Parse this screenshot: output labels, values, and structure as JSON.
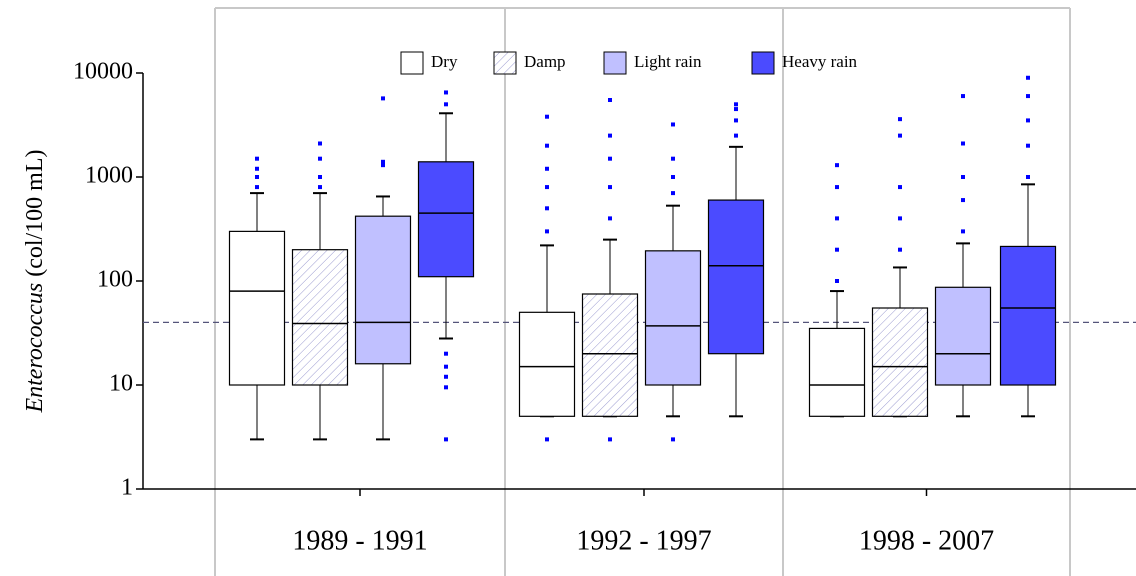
{
  "chart_data": {
    "type": "box",
    "y_label": [
      "Enterococcus",
      " (col/100 mL)"
    ],
    "categories": [
      "1989 - 1991",
      "1992 - 1997",
      "1998 - 2007"
    ],
    "log_scale": true,
    "ylim": [
      1,
      10000
    ],
    "yticks": [
      1,
      10,
      100,
      1000,
      10000
    ],
    "reference_line": 40,
    "outlier_color": "#0000ff",
    "legend": "top",
    "series": [
      {
        "name": "Dry",
        "color": "#ffffff",
        "pattern": "none",
        "boxes": [
          {
            "whisker_low": 3,
            "q1": 10,
            "median": 80,
            "q3": 300,
            "whisker_high": 700,
            "outliers": [
              800,
              1000,
              1200,
              1500
            ]
          },
          {
            "whisker_low": 5,
            "q1": 5,
            "median": 15,
            "q3": 50,
            "whisker_high": 220,
            "outliers": [
              3,
              300,
              500,
              800,
              1200,
              2000,
              3800
            ]
          },
          {
            "whisker_low": 5,
            "q1": 5,
            "median": 10,
            "q3": 35,
            "whisker_high": 80,
            "outliers": [
              100,
              200,
              400,
              800,
              1300
            ]
          }
        ]
      },
      {
        "name": "Damp",
        "color": "#ffffff",
        "pattern": "hatch",
        "boxes": [
          {
            "whisker_low": 3,
            "q1": 10,
            "median": 39,
            "q3": 200,
            "whisker_high": 700,
            "outliers": [
              800,
              1000,
              1500,
              2100
            ]
          },
          {
            "whisker_low": 5,
            "q1": 5,
            "median": 20,
            "q3": 75,
            "whisker_high": 250,
            "outliers": [
              3,
              400,
              800,
              1500,
              2500,
              5500
            ]
          },
          {
            "whisker_low": 5,
            "q1": 5,
            "median": 15,
            "q3": 55,
            "whisker_high": 135,
            "outliers": [
              200,
              400,
              800,
              2500,
              3600
            ]
          }
        ]
      },
      {
        "name": "Light rain",
        "color": "#c0c0ff",
        "pattern": "none",
        "boxes": [
          {
            "whisker_low": 3,
            "q1": 16,
            "median": 40,
            "q3": 420,
            "whisker_high": 650,
            "outliers": [
              1300,
              1400,
              5700
            ]
          },
          {
            "whisker_low": 5,
            "q1": 10,
            "median": 37,
            "q3": 195,
            "whisker_high": 530,
            "outliers": [
              3,
              700,
              1000,
              1500,
              3200
            ]
          },
          {
            "whisker_low": 5,
            "q1": 10,
            "median": 20,
            "q3": 87,
            "whisker_high": 230,
            "outliers": [
              300,
              600,
              1000,
              2100,
              6000
            ]
          }
        ]
      },
      {
        "name": "Heavy rain",
        "color": "#4b4bff",
        "pattern": "none",
        "boxes": [
          {
            "whisker_low": 28,
            "q1": 110,
            "median": 450,
            "q3": 1400,
            "whisker_high": 4100,
            "outliers": [
              3,
              9.5,
              12,
              15,
              20,
              5000,
              6500
            ]
          },
          {
            "whisker_low": 5,
            "q1": 20,
            "median": 140,
            "q3": 600,
            "whisker_high": 1950,
            "outliers": [
              2500,
              3500,
              4500,
              5000
            ]
          },
          {
            "whisker_low": 5,
            "q1": 10,
            "median": 55,
            "q3": 215,
            "whisker_high": 850,
            "outliers": [
              1000,
              2000,
              3500,
              6000,
              9000
            ]
          }
        ]
      }
    ]
  }
}
